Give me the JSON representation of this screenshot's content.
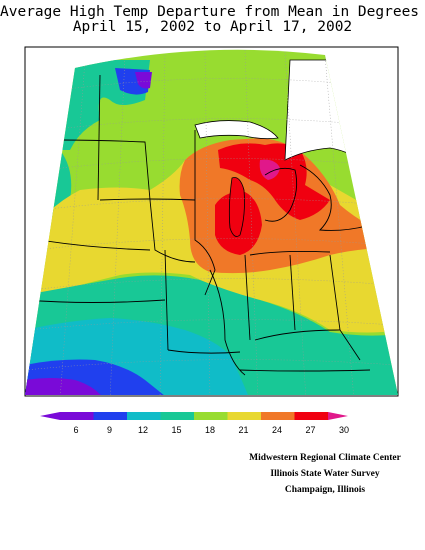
{
  "title": {
    "line1": "Average High Temp Departure from Mean in Degrees F",
    "line2": "April 15, 2002 to April 17, 2002"
  },
  "legend": {
    "ticks": [
      "6",
      "9",
      "12",
      "15",
      "18",
      "21",
      "24",
      "27",
      "30"
    ],
    "colors": [
      "#7a0ad8",
      "#2040ee",
      "#10bcc8",
      "#18c896",
      "#98dc30",
      "#e8d830",
      "#f07828",
      "#f00010",
      "#e0188a"
    ]
  },
  "credits": {
    "line1": "Midwestern Regional Climate Center",
    "line2": "Illinois State Water Survey",
    "line3": "Champaign, Illinois"
  }
}
